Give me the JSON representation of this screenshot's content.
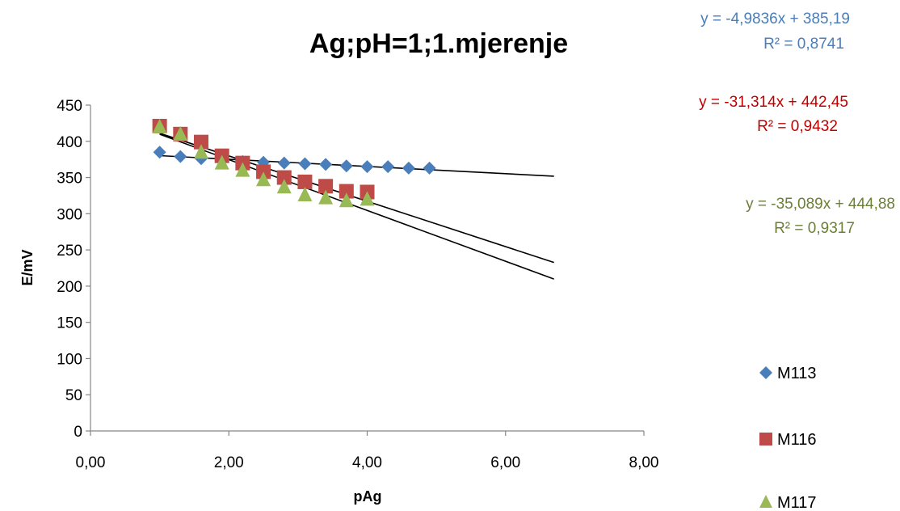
{
  "chart_data": {
    "type": "scatter",
    "title": "Ag;pH=1;1.mjerenje",
    "xlabel": "pAg",
    "ylabel": "E/mV",
    "xlim": [
      0,
      8
    ],
    "ylim": [
      0,
      450
    ],
    "x_ticks": [
      "0,00",
      "2,00",
      "4,00",
      "6,00",
      "8,00"
    ],
    "y_ticks": [
      "0",
      "50",
      "100",
      "150",
      "200",
      "250",
      "300",
      "350",
      "400",
      "450"
    ],
    "grid": false,
    "legend": "right",
    "series": [
      {
        "name": "M113",
        "color": "#4a7ebb",
        "marker": "diamond",
        "x": [
          1.0,
          1.3,
          1.6,
          1.9,
          2.2,
          2.5,
          2.8,
          3.1,
          3.4,
          3.7,
          4.0,
          4.3,
          4.6,
          4.9
        ],
        "y": [
          385,
          379,
          376,
          374,
          372,
          371,
          370,
          369,
          368,
          366,
          365,
          365,
          363,
          363
        ],
        "trendline": {
          "slope": -4.9836,
          "intercept": 385.19,
          "x_end": 6.7,
          "equation": "y = -4,9836x + 385,19",
          "r2": "R² = 0,8741",
          "color": "#4a7ebb"
        }
      },
      {
        "name": "M116",
        "color": "#be4b48",
        "marker": "square",
        "x": [
          1.0,
          1.3,
          1.6,
          1.9,
          2.2,
          2.5,
          2.8,
          3.1,
          3.4,
          3.7,
          4.0
        ],
        "y": [
          421,
          410,
          399,
          380,
          370,
          358,
          350,
          344,
          338,
          331,
          330
        ],
        "trendline": {
          "slope": -31.314,
          "intercept": 442.45,
          "x_end": 6.7,
          "equation": "y = -31,314x + 442,45",
          "r2": "R² = 0,9432",
          "color": "#c00000"
        }
      },
      {
        "name": "M117",
        "color": "#98b954",
        "marker": "triangle",
        "x": [
          1.0,
          1.3,
          1.6,
          1.9,
          2.2,
          2.5,
          2.8,
          3.1,
          3.4,
          3.7,
          4.0
        ],
        "y": [
          420,
          410,
          385,
          370,
          360,
          347,
          337,
          326,
          322,
          318,
          320
        ],
        "trendline": {
          "slope": -35.089,
          "intercept": 444.88,
          "x_end": 6.7,
          "equation": "y = -35,089x + 444,88",
          "r2": "R² = 0,9317",
          "color": "#6b7f35"
        }
      }
    ]
  }
}
